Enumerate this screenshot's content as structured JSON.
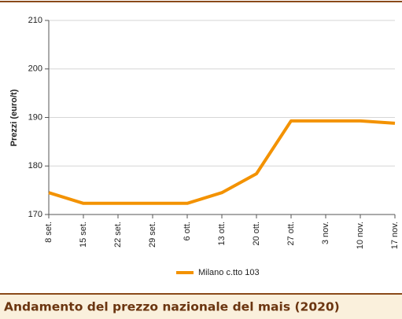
{
  "chart_data": {
    "type": "line",
    "title": "Andamento del prezzo nazionale del mais (2020)",
    "y_label": "Prezzi (euro/t)",
    "categories": [
      "8 set.",
      "15 set.",
      "22 set.",
      "29 set.",
      "6 ott.",
      "13 ott.",
      "20 ott.",
      "27 ott.",
      "3 nov.",
      "10 nov.",
      "17 nov."
    ],
    "series": [
      {
        "name": "Milano  c.tto 103",
        "color": "#f39200",
        "values": [
          174.5,
          172.3,
          172.3,
          172.3,
          172.3,
          174.5,
          178.4,
          189.3,
          189.3,
          189.3,
          188.8
        ]
      }
    ],
    "ylim": [
      170,
      210
    ],
    "yticks": [
      170,
      180,
      190,
      200,
      210
    ],
    "grid": true
  }
}
